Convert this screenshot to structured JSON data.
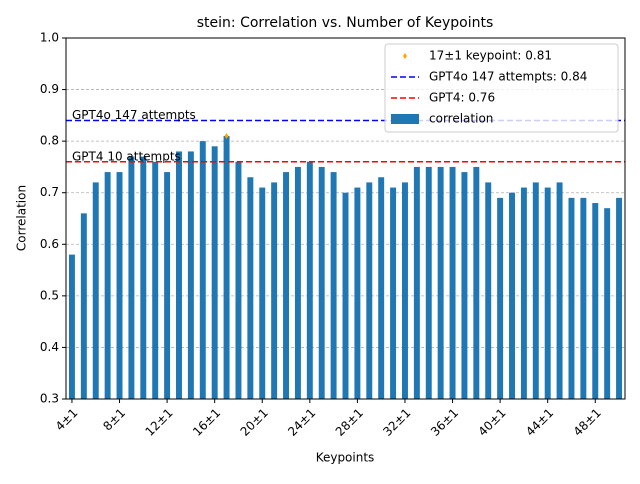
{
  "chart_data": {
    "type": "bar",
    "title": "stein: Correlation vs. Number of Keypoints",
    "x_label": "Keypoints",
    "y_label": "Correlation",
    "categories": [
      "4±1",
      null,
      null,
      null,
      "8±1",
      null,
      null,
      null,
      "12±1",
      null,
      null,
      null,
      "16±1",
      null,
      null,
      null,
      "20±1",
      null,
      null,
      null,
      "24±1",
      null,
      null,
      null,
      "28±1",
      null,
      null,
      null,
      "32±1",
      null,
      null,
      null,
      "36±1",
      null,
      null,
      null,
      "40±1",
      null,
      null,
      null,
      "44±1",
      null,
      null,
      null,
      "48±1",
      null,
      null
    ],
    "series": [
      {
        "name": "correlation",
        "color": "#1f77b4",
        "values": [
          0.58,
          0.66,
          0.72,
          0.74,
          0.74,
          0.77,
          0.77,
          0.76,
          0.74,
          0.78,
          0.78,
          0.8,
          0.79,
          0.81,
          0.76,
          0.73,
          0.71,
          0.72,
          0.74,
          0.75,
          0.76,
          0.75,
          0.74,
          0.7,
          0.71,
          0.72,
          0.73,
          0.71,
          0.72,
          0.75,
          0.75,
          0.75,
          0.75,
          0.74,
          0.75,
          0.72,
          0.69,
          0.7,
          0.71,
          0.72,
          0.71,
          0.72,
          0.69,
          0.69,
          0.68,
          0.67,
          0.69
        ]
      }
    ],
    "reference_lines": [
      {
        "name": "GPT4o 147 attempts: 0.84",
        "annotation": "GPT4o 147 attempts",
        "value": 0.84,
        "color": "#0000ff"
      },
      {
        "name": "GPT4: 0.76",
        "annotation": "GPT4 10 attempts",
        "value": 0.76,
        "color": "#ff0000"
      }
    ],
    "highlight": {
      "name": "17±1 keypoint: 0.81",
      "category": "17±1",
      "value": 0.81,
      "color": "orange"
    },
    "ylim": [
      0.3,
      1.0
    ],
    "yticks": [
      0.3,
      0.4,
      0.5,
      0.6,
      0.7,
      0.8,
      0.9,
      {
        "value": 1.0,
        "label": "1.0"
      }
    ],
    "grid": true,
    "legend": "upper right"
  }
}
